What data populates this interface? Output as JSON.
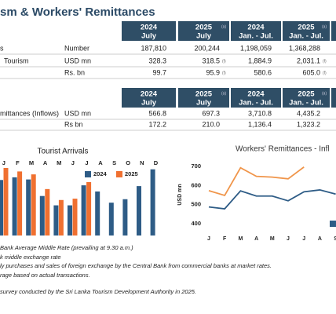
{
  "header": {
    "title": "sm & Workers' Remittances"
  },
  "table1": {
    "columns": [
      {
        "year": "2024",
        "period": "July"
      },
      {
        "year": "2025",
        "note": "(a)",
        "period": "July"
      },
      {
        "year": "2024",
        "period": "Jan. - Jul."
      },
      {
        "year": "2025",
        "note": "(a)",
        "period": "Jan. - Jul."
      }
    ],
    "rows": [
      {
        "label": "s",
        "unit": "Number",
        "cells": [
          [
            "187,810"
          ],
          [
            "200,244"
          ],
          [
            "1,198,059"
          ],
          [
            "1,368,288"
          ]
        ]
      },
      {
        "label": "Tourism",
        "unit": "USD mn",
        "cells": [
          [
            "328.3"
          ],
          [
            "318.5",
            "(f)"
          ],
          [
            "1,884.9"
          ],
          [
            "2,031.1",
            "(f)"
          ]
        ]
      },
      {
        "unit": "Rs. bn",
        "cells": [
          [
            "99.7"
          ],
          [
            "95.9",
            "(f)"
          ],
          [
            "580.6"
          ],
          [
            "605.0",
            "(f)"
          ]
        ]
      }
    ]
  },
  "table2": {
    "columns": [
      {
        "year": "2024",
        "period": "July"
      },
      {
        "year": "2025",
        "note": "(a)",
        "period": "July"
      },
      {
        "year": "2024",
        "period": "Jan. - Jul."
      },
      {
        "year": "2025",
        "note": "(a)",
        "period": "Jan. - Jul."
      }
    ],
    "rows": [
      {
        "label": "mittances (Inflows)",
        "unit": "USD mn",
        "cells": [
          [
            "566.8"
          ],
          [
            "697.3"
          ],
          [
            "3,710.8"
          ],
          [
            "4,435.2"
          ]
        ]
      },
      {
        "unit": "Rs bn",
        "cells": [
          [
            "172.2"
          ],
          [
            "210.0"
          ],
          [
            "1,136.4"
          ],
          [
            "1,323.2"
          ]
        ]
      }
    ]
  },
  "charts": [
    {
      "type": "bar",
      "title": "Tourist Arrivals",
      "categories": [
        "J",
        "F",
        "M",
        "A",
        "M",
        "J",
        "J",
        "A",
        "S",
        "O",
        "N",
        "D"
      ],
      "series": [
        {
          "name": "2024",
          "color": "#2e5c86",
          "values": [
            208,
            218,
            210,
            148,
            113,
            113,
            188,
            165,
            123,
            136,
            185,
            248
          ]
        },
        {
          "name": "2025",
          "color": "#f07030",
          "values": [
            253,
            240,
            229,
            174,
            133,
            138,
            200,
            null,
            null,
            null,
            null,
            null
          ]
        }
      ]
    },
    {
      "type": "line",
      "title": "Workers' Remittances - Infl",
      "ylabel": "USD mn",
      "categories": [
        "J",
        "F",
        "M",
        "A",
        "M",
        "J",
        "J",
        "A",
        "S"
      ],
      "ylim": [
        400,
        700
      ],
      "yticks": [
        400,
        500,
        600,
        700
      ],
      "series": [
        {
          "color": "#2e5c86",
          "values": [
            488,
            478,
            572,
            545,
            545,
            520,
            567,
            577,
            555
          ]
        },
        {
          "color": "#f0954a",
          "values": [
            573,
            548,
            693,
            648,
            644,
            635,
            697,
            null,
            null
          ]
        }
      ]
    }
  ],
  "notes": [
    "Bank Average Middle Rate (prevailing at 9.30 a.m.)",
    "k middle exchange rate",
    "ly purchases and sales of foreign exchange by the Central Bank from commercial banks at market rates.",
    "rage based on actual transactions.",
    "survey conducted by the Sri Lanka Tourism Development Authority in 2025."
  ]
}
